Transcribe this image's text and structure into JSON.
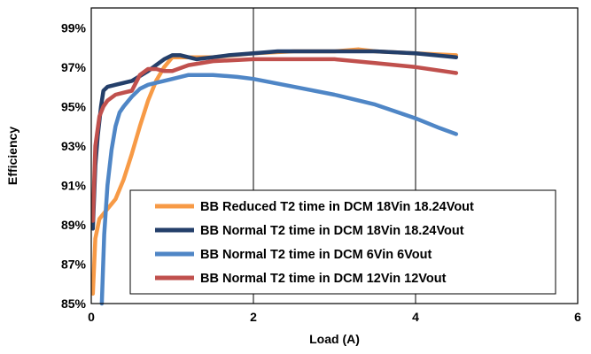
{
  "chart_data": {
    "type": "line",
    "title": "",
    "xlabel": "Load (A)",
    "ylabel": "Efficiency",
    "xlim": [
      0,
      6
    ],
    "ylim": [
      85,
      100
    ],
    "xticks": [
      "0",
      "2",
      "4",
      "6"
    ],
    "xtick_values": [
      0,
      2,
      4,
      6
    ],
    "yticks": [
      "85%",
      "87%",
      "89%",
      "91%",
      "93%",
      "95%",
      "97%",
      "99%"
    ],
    "ytick_values": [
      85,
      87,
      89,
      91,
      93,
      95,
      97,
      99
    ],
    "grid": {
      "vertical": true,
      "horizontal": false
    },
    "legend_position": "bottom-right",
    "series": [
      {
        "name": "BB Reduced T2 time in DCM 18Vin 18.24Vout",
        "color": "#f79a46",
        "x": [
          0.02,
          0.05,
          0.1,
          0.2,
          0.3,
          0.4,
          0.5,
          0.6,
          0.7,
          0.8,
          0.9,
          1.0,
          1.1,
          1.5,
          2.0,
          2.5,
          3.0,
          3.3,
          3.5,
          4.0,
          4.5
        ],
        "y": [
          85.5,
          88.3,
          89.3,
          89.8,
          90.3,
          91.3,
          92.6,
          94.0,
          95.3,
          96.3,
          97.0,
          97.5,
          97.5,
          97.5,
          97.7,
          97.8,
          97.8,
          97.9,
          97.8,
          97.7,
          97.6
        ]
      },
      {
        "name": "BB Normal T2 time in DCM 18Vin 18.24Vout",
        "color": "#243f6a",
        "x": [
          0.02,
          0.05,
          0.08,
          0.12,
          0.15,
          0.2,
          0.3,
          0.5,
          0.7,
          0.8,
          0.9,
          1.0,
          1.1,
          1.2,
          1.3,
          1.5,
          1.7,
          2.0,
          2.3,
          2.5,
          3.0,
          3.5,
          4.0,
          4.5
        ],
        "y": [
          88.8,
          92.0,
          93.5,
          95.0,
          95.8,
          96.0,
          96.1,
          96.3,
          96.8,
          97.1,
          97.4,
          97.6,
          97.6,
          97.5,
          97.4,
          97.5,
          97.6,
          97.7,
          97.8,
          97.8,
          97.8,
          97.8,
          97.7,
          97.5
        ]
      },
      {
        "name": "BB Normal T2 time in DCM 6Vin 6Vout",
        "color": "#4f86c6",
        "x": [
          0.13,
          0.16,
          0.2,
          0.25,
          0.3,
          0.35,
          0.4,
          0.5,
          0.6,
          0.7,
          0.8,
          1.0,
          1.2,
          1.5,
          1.8,
          2.0,
          2.5,
          3.0,
          3.5,
          4.0,
          4.3,
          4.5
        ],
        "y": [
          85.0,
          88.5,
          91.0,
          92.8,
          94.0,
          94.7,
          95.0,
          95.5,
          95.9,
          96.1,
          96.2,
          96.4,
          96.6,
          96.6,
          96.5,
          96.4,
          96.0,
          95.6,
          95.1,
          94.4,
          93.9,
          93.6
        ]
      },
      {
        "name": "BB Normal T2 time in DCM 12Vin 12Vout",
        "color": "#c0504d",
        "x": [
          0.02,
          0.05,
          0.1,
          0.15,
          0.2,
          0.3,
          0.4,
          0.5,
          0.6,
          0.7,
          0.8,
          0.9,
          1.0,
          1.2,
          1.5,
          2.0,
          2.5,
          3.0,
          3.5,
          4.0,
          4.5
        ],
        "y": [
          89.2,
          93.0,
          94.5,
          95.0,
          95.3,
          95.6,
          95.7,
          95.8,
          96.6,
          96.9,
          96.9,
          96.8,
          96.8,
          97.1,
          97.3,
          97.4,
          97.4,
          97.4,
          97.2,
          97.0,
          96.7
        ]
      }
    ]
  }
}
